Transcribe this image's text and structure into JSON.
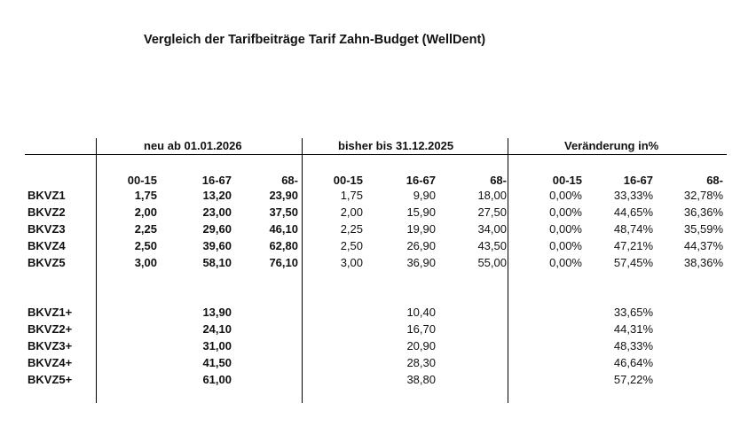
{
  "title": "Vergleich der Tarifbeiträge Tarif Zahn-Budget (WellDent)",
  "groups": {
    "neu": "neu ab 01.01.2026",
    "bisher": "bisher bis 31.12.2025",
    "veraenderung": "Veränderung in%"
  },
  "age_headers": [
    "00-15",
    "16-67",
    "68-"
  ],
  "rows": [
    {
      "label": "BKVZ1",
      "neu": [
        "1,75",
        "13,20",
        "23,90"
      ],
      "bisher": [
        "1,75",
        "9,90",
        "18,00"
      ],
      "change": [
        "0,00%",
        "33,33%",
        "32,78%"
      ]
    },
    {
      "label": "BKVZ2",
      "neu": [
        "2,00",
        "23,00",
        "37,50"
      ],
      "bisher": [
        "2,00",
        "15,90",
        "27,50"
      ],
      "change": [
        "0,00%",
        "44,65%",
        "36,36%"
      ]
    },
    {
      "label": "BKVZ3",
      "neu": [
        "2,25",
        "29,60",
        "46,10"
      ],
      "bisher": [
        "2,25",
        "19,90",
        "34,00"
      ],
      "change": [
        "0,00%",
        "48,74%",
        "35,59%"
      ]
    },
    {
      "label": "BKVZ4",
      "neu": [
        "2,50",
        "39,60",
        "62,80"
      ],
      "bisher": [
        "2,50",
        "26,90",
        "43,50"
      ],
      "change": [
        "0,00%",
        "47,21%",
        "44,37%"
      ]
    },
    {
      "label": "BKVZ5",
      "neu": [
        "3,00",
        "58,10",
        "76,10"
      ],
      "bisher": [
        "3,00",
        "36,90",
        "55,00"
      ],
      "change": [
        "0,00%",
        "57,45%",
        "38,36%"
      ]
    }
  ],
  "plus_rows": [
    {
      "label": "BKVZ1+",
      "neu": "13,90",
      "bisher": "10,40",
      "change": "33,65%"
    },
    {
      "label": "BKVZ2+",
      "neu": "24,10",
      "bisher": "16,70",
      "change": "44,31%"
    },
    {
      "label": "BKVZ3+",
      "neu": "31,00",
      "bisher": "20,90",
      "change": "48,33%"
    },
    {
      "label": "BKVZ4+",
      "neu": "41,50",
      "bisher": "28,30",
      "change": "46,64%"
    },
    {
      "label": "BKVZ5+",
      "neu": "61,00",
      "bisher": "38,80",
      "change": "57,22%"
    }
  ]
}
